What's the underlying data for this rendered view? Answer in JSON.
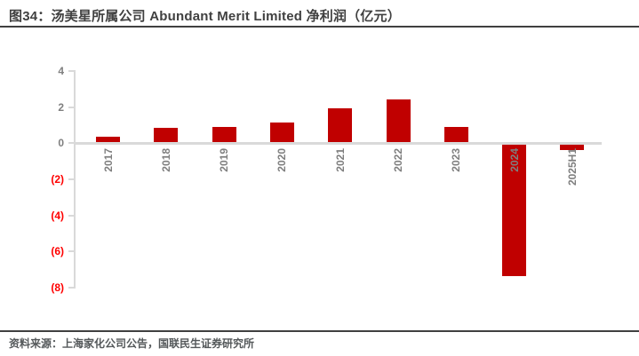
{
  "header": {
    "title": "图34：汤美星所属公司 Abundant Merit Limited 净利润（亿元）"
  },
  "footer": {
    "source": "资料来源：上海家化公司公告，国联民生证券研究所"
  },
  "colors": {
    "bar": "#C00000",
    "axis_line": "#D9D9D9",
    "tick_label_positive": "#7F7F7F",
    "tick_label_negative": "#FF0000",
    "category_label": "#7F7F7F",
    "title_text": "#404040",
    "separator_line": "#404040",
    "source_text": "#54585A"
  },
  "chart_data": {
    "type": "bar",
    "title": "汤美星所属公司 Abundant Merit Limited 净利润（亿元）",
    "categories": [
      "2017",
      "2018",
      "2019",
      "2020",
      "2021",
      "2022",
      "2023",
      "2024",
      "2025H1"
    ],
    "values": [
      0.3,
      0.8,
      0.85,
      1.05,
      1.85,
      2.35,
      0.85,
      -7.3,
      -0.3
    ],
    "ylim": [
      -8,
      4
    ],
    "yticks": [
      4,
      2,
      0,
      -2,
      -4,
      -6,
      -8
    ],
    "ytick_labels": [
      "4",
      "2",
      "0",
      "(2)",
      "(4)",
      "(6)",
      "(8)"
    ],
    "negative_label_format": "parentheses",
    "xlabel": "",
    "ylabel": "",
    "grid": false,
    "legend": "none",
    "category_label_rotation": -90
  }
}
